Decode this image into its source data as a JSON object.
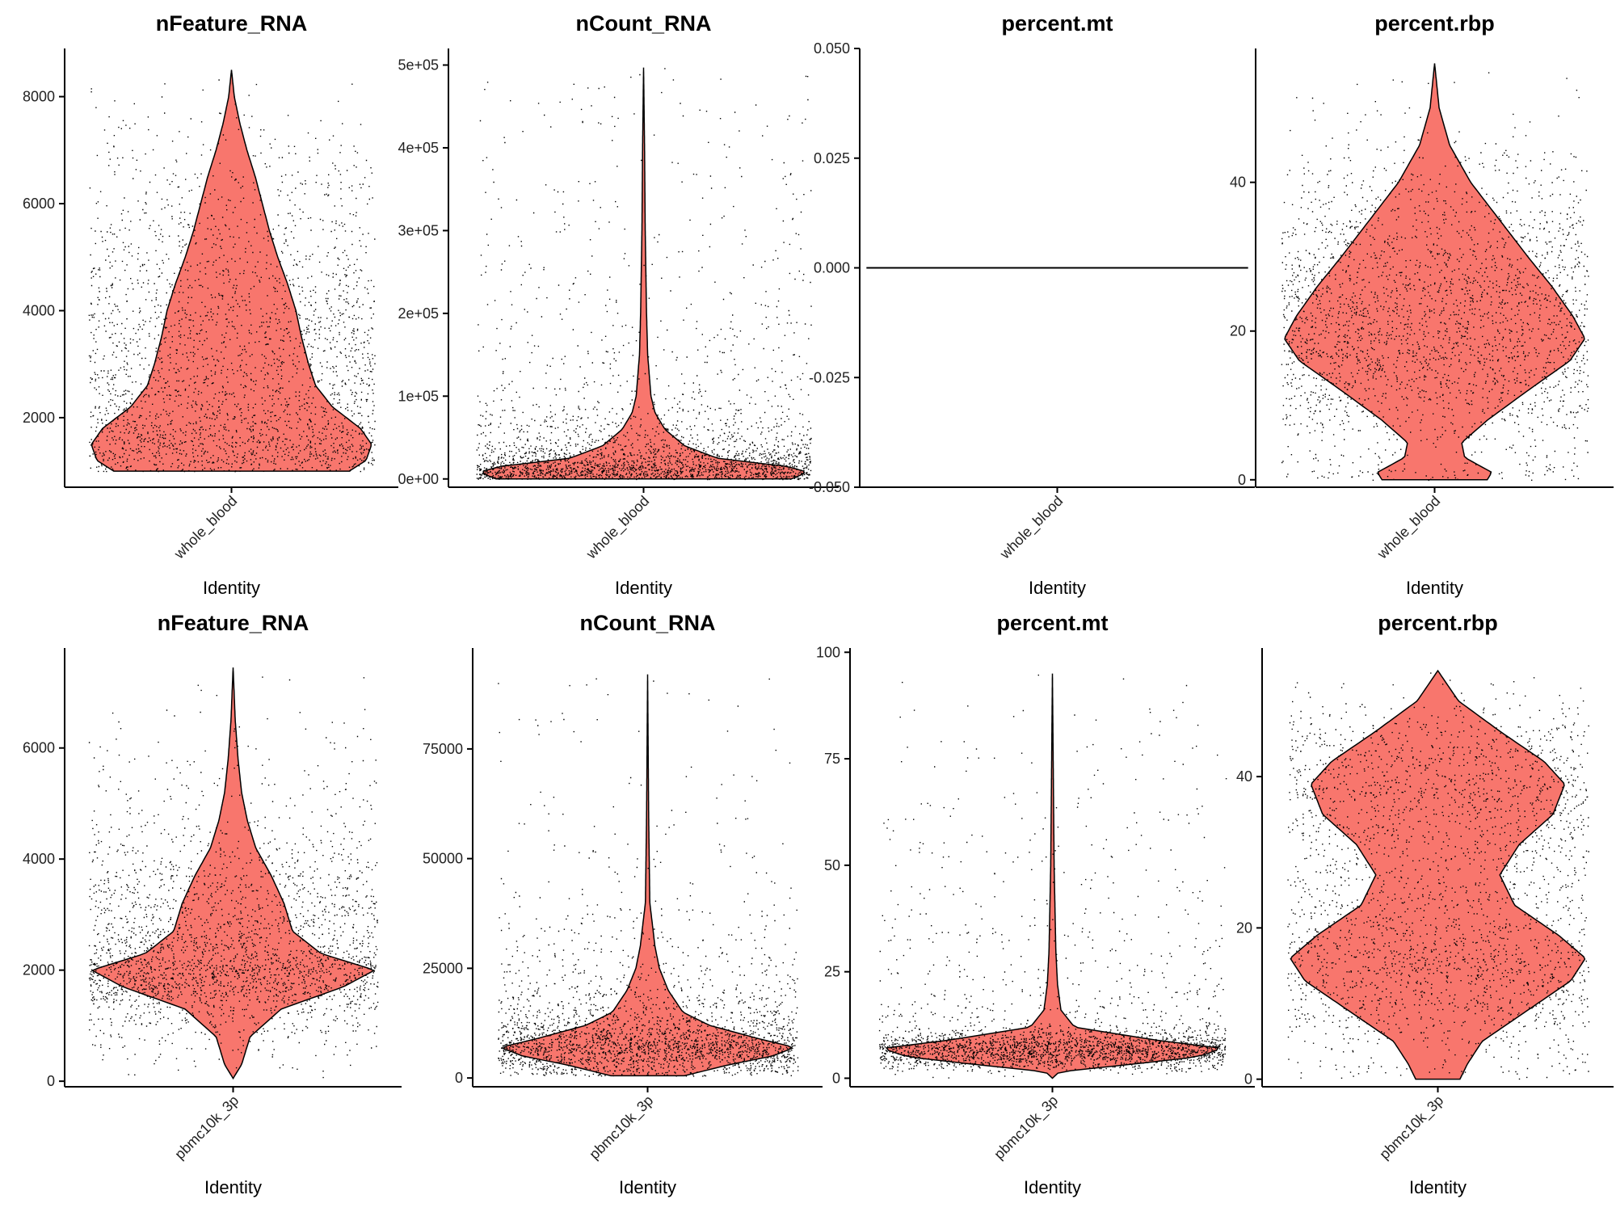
{
  "chart_data": [
    {
      "type": "violin",
      "title": "nFeature_RNA",
      "xlabel": "Identity",
      "category": "whole_blood",
      "ylim": [
        700,
        8900
      ],
      "yticks": [
        2000,
        4000,
        6000,
        8000
      ],
      "tick_labels": [
        "2000",
        "4000",
        "6000",
        "8000"
      ],
      "data_min": 1000,
      "data_max": 8500,
      "fill": "#F8766D",
      "density": [
        [
          1000,
          0.84
        ],
        [
          1200,
          0.96
        ],
        [
          1500,
          1.0
        ],
        [
          1800,
          0.92
        ],
        [
          2200,
          0.72
        ],
        [
          2600,
          0.6
        ],
        [
          3000,
          0.55
        ],
        [
          3500,
          0.5
        ],
        [
          4000,
          0.46
        ],
        [
          4500,
          0.4
        ],
        [
          5000,
          0.33
        ],
        [
          5500,
          0.27
        ],
        [
          6000,
          0.22
        ],
        [
          6500,
          0.17
        ],
        [
          7000,
          0.11
        ],
        [
          7500,
          0.06
        ],
        [
          8000,
          0.02
        ],
        [
          8500,
          0.0
        ]
      ]
    },
    {
      "type": "violin",
      "title": "nCount_RNA",
      "xlabel": "Identity",
      "category": "whole_blood",
      "ylim": [
        -10000,
        520000
      ],
      "yticks": [
        0,
        100000,
        200000,
        300000,
        400000,
        500000
      ],
      "tick_labels": [
        "0e+00",
        "1e+05",
        "2e+05",
        "3e+05",
        "4e+05",
        "5e+05"
      ],
      "data_min": 0,
      "data_max": 497000,
      "fill": "#F8766D",
      "density": [
        [
          0,
          0.9
        ],
        [
          8000,
          1.0
        ],
        [
          15000,
          0.88
        ],
        [
          25000,
          0.45
        ],
        [
          40000,
          0.25
        ],
        [
          60000,
          0.13
        ],
        [
          80000,
          0.07
        ],
        [
          100000,
          0.045
        ],
        [
          150000,
          0.025
        ],
        [
          200000,
          0.018
        ],
        [
          300000,
          0.01
        ],
        [
          400000,
          0.006
        ],
        [
          497000,
          0.0
        ]
      ]
    },
    {
      "type": "violin",
      "title": "percent.mt",
      "xlabel": "Identity",
      "category": "whole_blood",
      "ylim": [
        -0.05,
        0.05
      ],
      "yticks": [
        -0.05,
        -0.025,
        0,
        0.025,
        0.05
      ],
      "tick_labels": [
        "-0.050",
        "-0.025",
        "0.000",
        "0.025",
        "0.050"
      ],
      "data_min": 0,
      "data_max": 0,
      "fill": "#F8766D",
      "flat_value": 0,
      "density": []
    },
    {
      "type": "violin",
      "title": "percent.rbp",
      "xlabel": "Identity",
      "category": "whole_blood",
      "ylim": [
        -1,
        58
      ],
      "yticks": [
        0,
        20,
        40
      ],
      "tick_labels": [
        "0",
        "20",
        "40"
      ],
      "data_min": 0,
      "data_max": 56,
      "fill": "#F8766D",
      "density": [
        [
          0,
          0.35
        ],
        [
          1,
          0.38
        ],
        [
          3,
          0.2
        ],
        [
          5,
          0.18
        ],
        [
          8,
          0.35
        ],
        [
          12,
          0.62
        ],
        [
          16,
          0.9
        ],
        [
          19,
          1.0
        ],
        [
          22,
          0.92
        ],
        [
          26,
          0.78
        ],
        [
          30,
          0.62
        ],
        [
          35,
          0.43
        ],
        [
          40,
          0.24
        ],
        [
          45,
          0.1
        ],
        [
          50,
          0.03
        ],
        [
          56,
          0.0
        ]
      ]
    },
    {
      "type": "violin",
      "title": "nFeature_RNA",
      "xlabel": "Identity",
      "category": "pbmc10k_3p",
      "ylim": [
        -100,
        7800
      ],
      "yticks": [
        0,
        2000,
        4000,
        6000
      ],
      "tick_labels": [
        "0",
        "2000",
        "4000",
        "6000"
      ],
      "data_min": 50,
      "data_max": 7450,
      "fill": "#F8766D",
      "density": [
        [
          50,
          0.0
        ],
        [
          300,
          0.06
        ],
        [
          800,
          0.12
        ],
        [
          1300,
          0.34
        ],
        [
          1700,
          0.78
        ],
        [
          2000,
          1.0
        ],
        [
          2300,
          0.62
        ],
        [
          2700,
          0.42
        ],
        [
          3200,
          0.36
        ],
        [
          3700,
          0.27
        ],
        [
          4200,
          0.16
        ],
        [
          4700,
          0.1
        ],
        [
          5200,
          0.06
        ],
        [
          5800,
          0.035
        ],
        [
          6500,
          0.015
        ],
        [
          7450,
          0.0
        ]
      ]
    },
    {
      "type": "violin",
      "title": "nCount_RNA",
      "xlabel": "Identity",
      "category": "pbmc10k_3p",
      "ylim": [
        -2000,
        98000
      ],
      "yticks": [
        0,
        25000,
        50000,
        75000
      ],
      "tick_labels": [
        "0",
        "25000",
        "50000",
        "75000"
      ],
      "data_min": 500,
      "data_max": 92000,
      "fill": "#F8766D",
      "density": [
        [
          500,
          0.25
        ],
        [
          3000,
          0.55
        ],
        [
          5000,
          0.85
        ],
        [
          7000,
          1.0
        ],
        [
          9000,
          0.75
        ],
        [
          12000,
          0.42
        ],
        [
          15000,
          0.24
        ],
        [
          20000,
          0.14
        ],
        [
          25000,
          0.08
        ],
        [
          30000,
          0.05
        ],
        [
          40000,
          0.015
        ],
        [
          60000,
          0.007
        ],
        [
          92000,
          0.0
        ]
      ]
    },
    {
      "type": "violin",
      "title": "percent.mt",
      "xlabel": "Identity",
      "category": "pbmc10k_3p",
      "ylim": [
        -2,
        101
      ],
      "yticks": [
        0,
        25,
        50,
        75,
        100
      ],
      "tick_labels": [
        "0",
        "25",
        "50",
        "75",
        "100"
      ],
      "data_min": 0,
      "data_max": 95,
      "fill": "#F8766D",
      "density": [
        [
          0,
          0.0
        ],
        [
          1.5,
          0.04
        ],
        [
          3,
          0.4
        ],
        [
          5,
          0.85
        ],
        [
          7,
          1.0
        ],
        [
          9,
          0.6
        ],
        [
          12,
          0.13
        ],
        [
          16,
          0.05
        ],
        [
          22,
          0.03
        ],
        [
          30,
          0.02
        ],
        [
          50,
          0.01
        ],
        [
          95,
          0.0
        ]
      ]
    },
    {
      "type": "violin",
      "title": "percent.rbp",
      "xlabel": "Identity",
      "category": "pbmc10k_3p",
      "ylim": [
        -1,
        57
      ],
      "yticks": [
        0,
        20,
        40
      ],
      "tick_labels": [
        "0",
        "20",
        "40"
      ],
      "data_min": 0,
      "data_max": 54,
      "fill": "#F8766D",
      "density": [
        [
          0,
          0.15
        ],
        [
          2,
          0.2
        ],
        [
          5,
          0.3
        ],
        [
          9,
          0.6
        ],
        [
          13,
          0.9
        ],
        [
          16,
          1.0
        ],
        [
          19,
          0.82
        ],
        [
          23,
          0.52
        ],
        [
          27,
          0.42
        ],
        [
          31,
          0.55
        ],
        [
          35,
          0.78
        ],
        [
          39,
          0.86
        ],
        [
          42,
          0.72
        ],
        [
          46,
          0.42
        ],
        [
          50,
          0.14
        ],
        [
          54,
          0.0
        ]
      ]
    }
  ]
}
